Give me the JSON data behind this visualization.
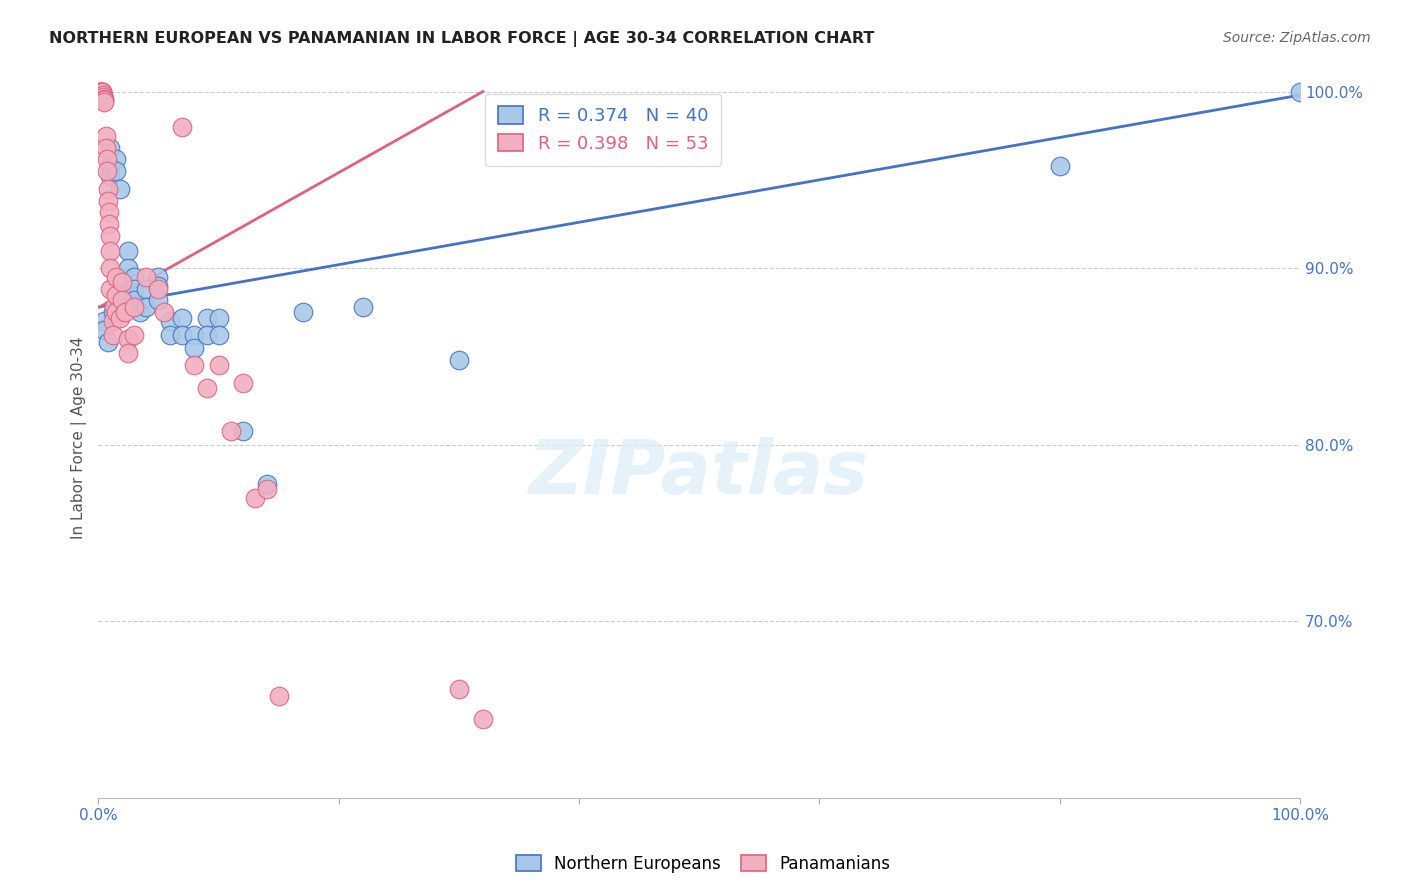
{
  "title": "NORTHERN EUROPEAN VS PANAMANIAN IN LABOR FORCE | AGE 30-34 CORRELATION CHART",
  "source": "Source: ZipAtlas.com",
  "ylabel": "In Labor Force | Age 30-34",
  "xlim": [
    0.0,
    1.0
  ],
  "ylim": [
    0.6,
    1.008
  ],
  "yticks": [
    0.7,
    0.8,
    0.9,
    1.0
  ],
  "ytick_labels": [
    "70.0%",
    "80.0%",
    "90.0%",
    "100.0%"
  ],
  "xticks": [
    0.0,
    0.2,
    0.4,
    0.6,
    0.8,
    1.0
  ],
  "xtick_labels": [
    "0.0%",
    "",
    "",
    "",
    "",
    "100.0%"
  ],
  "blue_R": 0.374,
  "blue_N": 40,
  "pink_R": 0.398,
  "pink_N": 53,
  "blue_color": "#a8c8e8",
  "pink_color": "#f0b0c0",
  "blue_line_color": "#4472C4",
  "pink_line_color": "#E06080",
  "blue_x": [
    0.005,
    0.005,
    0.008,
    0.01,
    0.01,
    0.01,
    0.012,
    0.015,
    0.015,
    0.018,
    0.02,
    0.02,
    0.025,
    0.025,
    0.03,
    0.03,
    0.03,
    0.035,
    0.04,
    0.04,
    0.05,
    0.05,
    0.05,
    0.06,
    0.06,
    0.07,
    0.07,
    0.08,
    0.08,
    0.09,
    0.09,
    0.1,
    0.1,
    0.12,
    0.14,
    0.17,
    0.22,
    0.3,
    0.8,
    1.0
  ],
  "blue_y": [
    0.87,
    0.865,
    0.858,
    0.968,
    0.958,
    0.952,
    0.875,
    0.962,
    0.955,
    0.945,
    0.895,
    0.885,
    0.91,
    0.9,
    0.895,
    0.888,
    0.882,
    0.875,
    0.888,
    0.878,
    0.895,
    0.89,
    0.882,
    0.87,
    0.862,
    0.872,
    0.862,
    0.862,
    0.855,
    0.872,
    0.862,
    0.872,
    0.862,
    0.808,
    0.778,
    0.875,
    0.878,
    0.848,
    0.958,
    1.0
  ],
  "pink_x": [
    0.001,
    0.001,
    0.001,
    0.002,
    0.002,
    0.003,
    0.003,
    0.003,
    0.004,
    0.004,
    0.005,
    0.005,
    0.005,
    0.006,
    0.006,
    0.007,
    0.007,
    0.008,
    0.008,
    0.009,
    0.009,
    0.01,
    0.01,
    0.01,
    0.01,
    0.012,
    0.012,
    0.013,
    0.015,
    0.015,
    0.015,
    0.018,
    0.02,
    0.02,
    0.022,
    0.025,
    0.025,
    0.03,
    0.03,
    0.04,
    0.05,
    0.055,
    0.07,
    0.08,
    0.09,
    0.1,
    0.11,
    0.12,
    0.13,
    0.14,
    0.15,
    0.3,
    0.32
  ],
  "pink_y": [
    1.0,
    1.0,
    1.0,
    1.0,
    1.0,
    1.0,
    1.0,
    1.0,
    0.998,
    0.997,
    0.996,
    0.995,
    0.994,
    0.975,
    0.968,
    0.962,
    0.955,
    0.945,
    0.938,
    0.932,
    0.925,
    0.918,
    0.91,
    0.9,
    0.888,
    0.87,
    0.862,
    0.878,
    0.895,
    0.885,
    0.875,
    0.872,
    0.892,
    0.882,
    0.875,
    0.86,
    0.852,
    0.878,
    0.862,
    0.895,
    0.888,
    0.875,
    0.98,
    0.845,
    0.832,
    0.845,
    0.808,
    0.835,
    0.77,
    0.775,
    0.658,
    0.662,
    0.645
  ],
  "blue_line_x": [
    0.0,
    1.0
  ],
  "blue_line_y": [
    0.878,
    0.998
  ],
  "pink_line_x": [
    0.001,
    0.32
  ],
  "pink_line_y": [
    0.878,
    1.0
  ]
}
